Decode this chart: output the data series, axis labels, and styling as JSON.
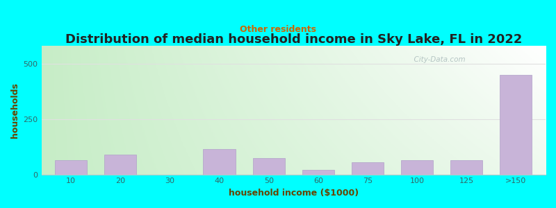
{
  "title": "Distribution of median household income in Sky Lake, FL in 2022",
  "subtitle": "Other residents",
  "xlabel": "household income ($1000)",
  "ylabel": "households",
  "fig_bg": "#00FFFF",
  "plot_bg_top_left": "#c8eec8",
  "plot_bg_top_right": "#ffffff",
  "plot_bg_bottom": "#c8eec8",
  "bar_color": "#c8b4d8",
  "bar_edge_color": "#b0a0c8",
  "categories": [
    "10",
    "20",
    "30",
    "40",
    "50",
    "60",
    "75",
    "100",
    "125",
    ">150"
  ],
  "values": [
    65,
    90,
    0,
    115,
    75,
    20,
    55,
    65,
    65,
    450
  ],
  "yticks": [
    0,
    250,
    500
  ],
  "ylim": [
    0,
    580
  ],
  "title_fontsize": 13,
  "subtitle_fontsize": 9,
  "axis_label_fontsize": 9,
  "tick_fontsize": 8,
  "title_color": "#222222",
  "subtitle_color": "#cc6600",
  "axis_label_color": "#664400",
  "tick_color": "#336666",
  "grid_color": "#e0e0e0",
  "watermark_text": "  City-Data.com",
  "watermark_color": "#aabbbb"
}
